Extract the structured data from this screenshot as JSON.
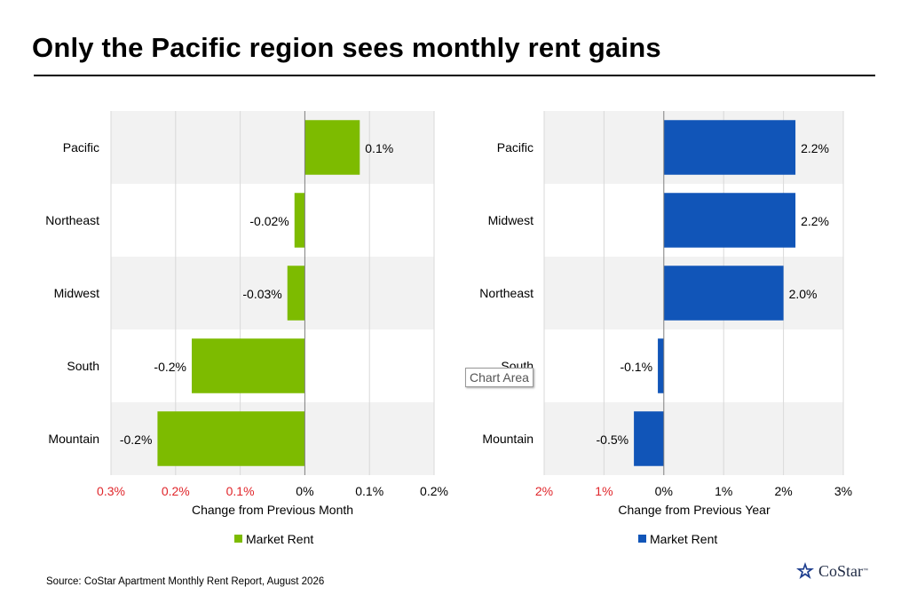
{
  "title": "Only the Pacific region sees monthly rent gains",
  "source": "Source: CoStar Apartment Monthly Rent Report, August 2026",
  "logo_text": "CoStar",
  "tooltip": "Chart Area",
  "chart_data": [
    {
      "type": "bar",
      "orientation": "horizontal",
      "categories": [
        "Pacific",
        "Northeast",
        "Midwest",
        "South",
        "Mountain"
      ],
      "values": [
        0.1,
        -0.02,
        -0.03,
        -0.2,
        -0.2
      ],
      "plotted_values": [
        0.085,
        -0.016,
        -0.027,
        -0.175,
        -0.228
      ],
      "data_labels": [
        "0.1%",
        "-0.02%",
        "-0.03%",
        "-0.2%",
        "-0.2%"
      ],
      "xlabel": "Change from Previous Month",
      "xlim": [
        -0.3,
        0.2
      ],
      "ticks": [
        -0.3,
        -0.2,
        -0.1,
        0,
        0.1,
        0.2
      ],
      "tick_labels": [
        "0.3%",
        "0.2%",
        "0.1%",
        "0%",
        "0.1%",
        "0.2%"
      ],
      "series": [
        {
          "name": "Market Rent",
          "color": "#7dbb00"
        }
      ],
      "grid": true,
      "legend": "bottom"
    },
    {
      "type": "bar",
      "orientation": "horizontal",
      "categories": [
        "Pacific",
        "Midwest",
        "Northeast",
        "South",
        "Mountain"
      ],
      "values": [
        2.2,
        2.2,
        2.0,
        -0.1,
        -0.5
      ],
      "data_labels": [
        "2.2%",
        "2.2%",
        "2.0%",
        "-0.1%",
        "-0.5%"
      ],
      "xlabel": "Change from Previous Year",
      "xlim": [
        -2,
        3
      ],
      "ticks": [
        -2,
        -1,
        0,
        1,
        2,
        3
      ],
      "tick_labels": [
        "2%",
        "1%",
        "0%",
        "1%",
        "2%",
        "3%"
      ],
      "series": [
        {
          "name": "Market Rent",
          "color": "#1155b8"
        }
      ],
      "grid": true,
      "legend": "bottom"
    }
  ],
  "colors": {
    "negative_tick": "#e0262b",
    "band": "#f2f2f2",
    "gridline": "#d9d9d9"
  }
}
